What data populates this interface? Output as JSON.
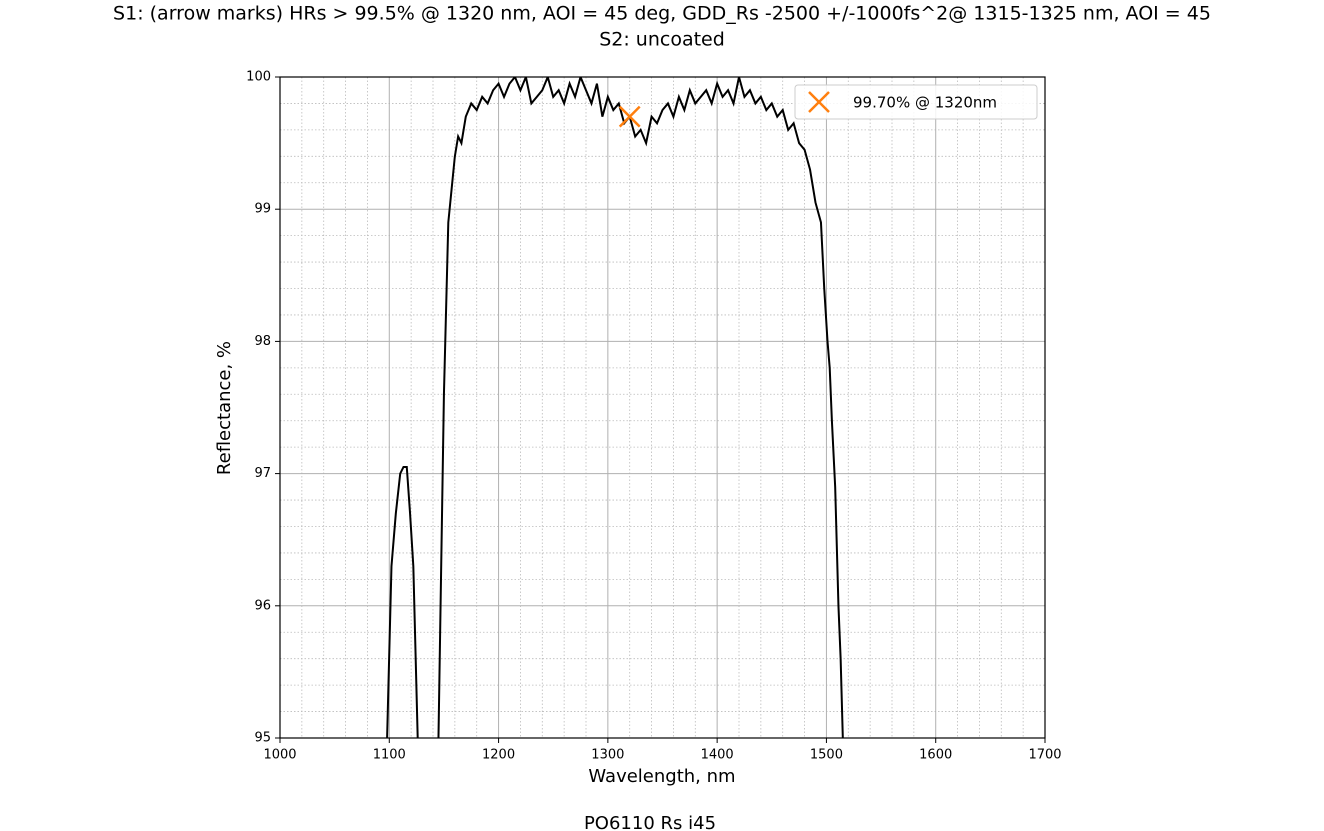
{
  "chart_data": {
    "type": "line",
    "title": "S1: (arrow marks) HRs > 99.5% @ 1320 nm, AOI = 45 deg, GDD_Rs -2500 +/-1000fs^2@ 1315-1325 nm, AOI = 45",
    "subtitle": "S2: uncoated",
    "xlabel": "Wavelength, nm",
    "ylabel": "Reflectance, %",
    "footer": "PO6110 Rs i45",
    "xlim": [
      1000,
      1700
    ],
    "ylim": [
      95,
      100
    ],
    "xticks": [
      1000,
      1100,
      1200,
      1300,
      1400,
      1500,
      1600,
      1700
    ],
    "yticks": [
      95,
      96,
      97,
      98,
      99,
      100
    ],
    "grid": true,
    "minor_divisions": 5,
    "legend": "upper right",
    "x": [
      1098,
      1102,
      1106,
      1110,
      1113,
      1116,
      1119,
      1122,
      1126,
      1135,
      1145,
      1150,
      1154,
      1157,
      1160,
      1163,
      1166,
      1170,
      1175,
      1180,
      1185,
      1190,
      1195,
      1200,
      1205,
      1210,
      1215,
      1220,
      1225,
      1230,
      1235,
      1240,
      1245,
      1250,
      1255,
      1260,
      1265,
      1270,
      1275,
      1280,
      1285,
      1290,
      1295,
      1300,
      1305,
      1310,
      1315,
      1320,
      1325,
      1330,
      1335,
      1340,
      1345,
      1350,
      1355,
      1360,
      1365,
      1370,
      1375,
      1380,
      1385,
      1390,
      1395,
      1400,
      1405,
      1410,
      1415,
      1420,
      1425,
      1430,
      1435,
      1440,
      1445,
      1450,
      1455,
      1460,
      1465,
      1470,
      1475,
      1480,
      1485,
      1490,
      1495,
      1498,
      1501,
      1503,
      1505,
      1508,
      1511,
      1513,
      1515
    ],
    "series": [
      {
        "color": "#000000",
        "values": [
          95,
          96.3,
          96.7,
          97.0,
          97.05,
          97.05,
          96.7,
          96.3,
          95,
          null,
          95,
          97.6,
          98.9,
          99.15,
          99.4,
          99.55,
          99.5,
          99.7,
          99.8,
          99.75,
          99.85,
          99.8,
          99.9,
          99.95,
          99.85,
          99.95,
          100,
          99.9,
          100,
          99.8,
          99.85,
          99.9,
          100,
          99.85,
          99.9,
          99.8,
          99.95,
          99.85,
          100,
          99.9,
          99.8,
          99.95,
          99.7,
          99.85,
          99.75,
          99.8,
          99.65,
          99.7,
          99.55,
          99.6,
          99.5,
          99.7,
          99.65,
          99.75,
          99.8,
          99.7,
          99.85,
          99.75,
          99.9,
          99.8,
          99.85,
          99.9,
          99.8,
          99.95,
          99.85,
          99.9,
          99.8,
          100,
          99.85,
          99.9,
          99.8,
          99.85,
          99.75,
          99.8,
          99.7,
          99.75,
          99.6,
          99.65,
          99.5,
          99.45,
          99.3,
          99.05,
          98.9,
          98.4,
          98.0,
          97.8,
          97.4,
          96.9,
          96.0,
          95.6,
          95
        ]
      }
    ],
    "marker": {
      "name": "99.70% @ 1320nm",
      "x": 1320,
      "y": 99.7,
      "color": "#ff7f0e"
    }
  }
}
